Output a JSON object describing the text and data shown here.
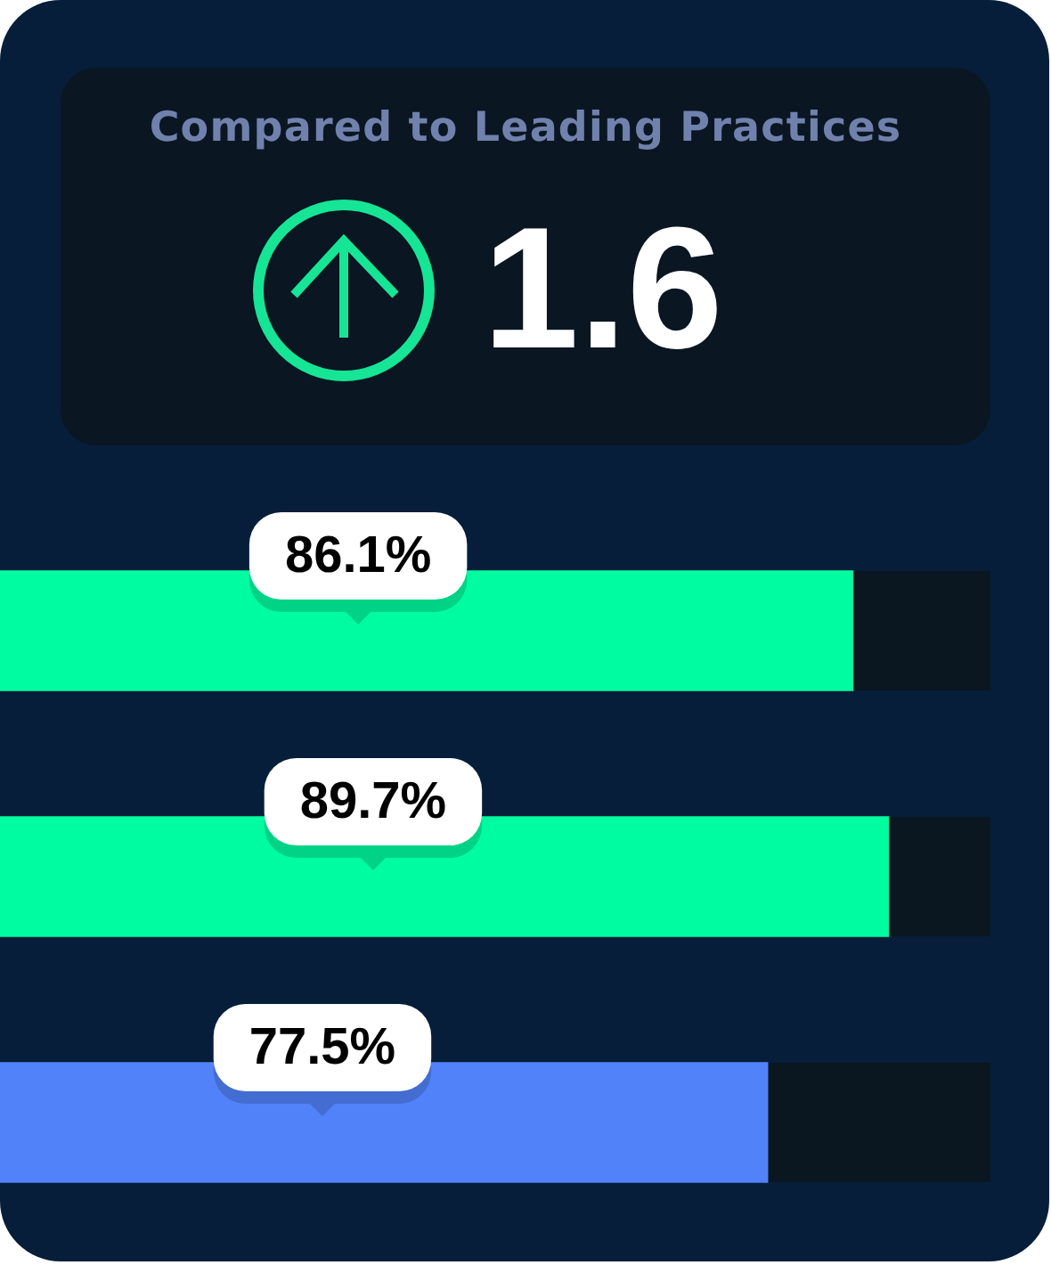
{
  "chart_data": [
    {
      "type": "other",
      "title": "Compared to Leading Practices",
      "annotations": [
        "1.6"
      ]
    },
    {
      "type": "bar",
      "orientation": "horizontal",
      "categories": [
        null,
        null,
        null
      ],
      "values": [
        86.1,
        89.7,
        77.5
      ],
      "colors": [
        "#00fca0",
        "#00fca0",
        "#5282fa"
      ],
      "value_labels": [
        "86.1%",
        "89.7%",
        "77.5%"
      ],
      "xlim": [
        0,
        100
      ],
      "tick_labels": false
    }
  ]
}
